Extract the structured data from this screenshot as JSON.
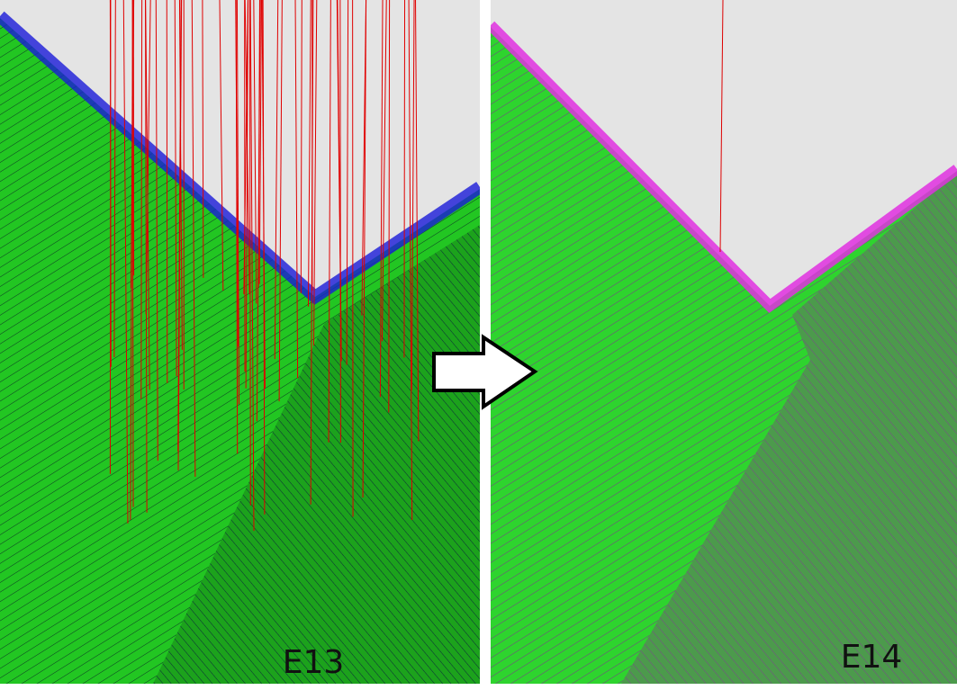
{
  "panels": [
    {
      "label": "E13"
    },
    {
      "label": "E14"
    }
  ]
}
